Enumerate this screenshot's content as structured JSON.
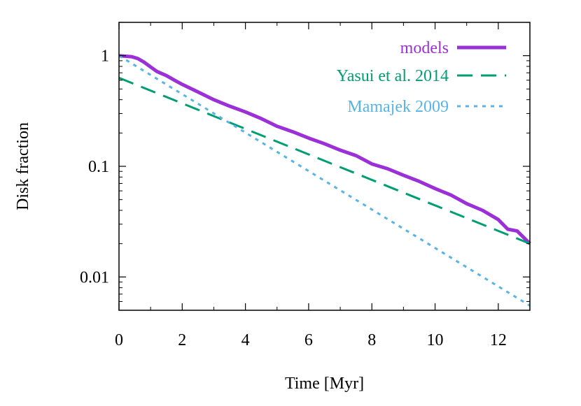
{
  "chart_data": {
    "type": "line",
    "title": "",
    "xlabel": "Time [Myr]",
    "ylabel": "Disk fraction",
    "xlim": [
      0,
      13
    ],
    "ylim": [
      0.005,
      2.0
    ],
    "yscale": "log",
    "grid": false,
    "legend_position": "top-right",
    "x_ticks": [
      0,
      2,
      4,
      6,
      8,
      10,
      12
    ],
    "x_tick_labels": [
      "0",
      "2",
      "4",
      "6",
      "8",
      "10",
      "12"
    ],
    "y_ticks": [
      1,
      0.1,
      0.01
    ],
    "y_tick_labels": [
      "1",
      "0.1",
      "0.01"
    ],
    "series": [
      {
        "name": "models",
        "color": "#9b30d9",
        "style": "solid",
        "x": [
          0,
          0.4,
          0.6,
          0.8,
          1.0,
          1.2,
          1.5,
          1.8,
          2.0,
          2.5,
          3.0,
          3.5,
          4.0,
          4.5,
          5.0,
          5.5,
          6.0,
          6.5,
          7.0,
          7.5,
          8.0,
          8.5,
          9.0,
          9.5,
          10.0,
          10.5,
          11.0,
          11.5,
          12.0,
          12.3,
          12.6,
          13.0
        ],
        "y": [
          1.0,
          0.98,
          0.94,
          0.87,
          0.79,
          0.72,
          0.66,
          0.59,
          0.55,
          0.47,
          0.4,
          0.35,
          0.31,
          0.27,
          0.23,
          0.205,
          0.18,
          0.16,
          0.14,
          0.125,
          0.105,
          0.095,
          0.083,
          0.073,
          0.063,
          0.055,
          0.046,
          0.04,
          0.033,
          0.027,
          0.026,
          0.02
        ]
      },
      {
        "name": "Yasui et al. 2014",
        "color": "#009e73",
        "style": "dashed",
        "x": [
          0,
          13
        ],
        "y": [
          0.63,
          0.02
        ]
      },
      {
        "name": "Mamajek 2009",
        "color": "#56b4e9",
        "style": "dotted",
        "x": [
          0,
          13
        ],
        "y": [
          1.0,
          0.0055
        ]
      }
    ]
  }
}
